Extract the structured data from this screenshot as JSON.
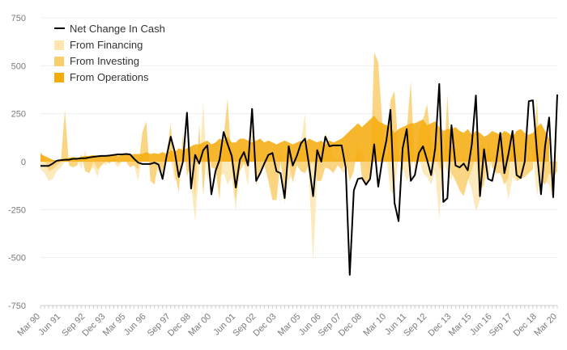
{
  "chart_data": {
    "type": "area",
    "x_ticks": [
      "Mar 90",
      "Jun 91",
      "Sep 92",
      "Dec 93",
      "Mar 95",
      "Jun 96",
      "Sep 97",
      "Dec 98",
      "Mar 00",
      "Jun 01",
      "Sep 02",
      "Dec 03",
      "Mar 05",
      "Jun 06",
      "Sep 07",
      "Dec 08",
      "Mar 10",
      "Jun 11",
      "Sep 12",
      "Dec 13",
      "Mar 15",
      "Jun 16",
      "Sep 17",
      "Dec 18",
      "Mar 20"
    ],
    "y_ticks": [
      750,
      500,
      250,
      0,
      -250,
      -500,
      -750
    ],
    "ylim": [
      -750,
      750
    ],
    "x_start": "Mar 90",
    "x_end": "Jun 20",
    "frequency": "quarterly",
    "legend": {
      "net_change": "Net Change In Cash",
      "financing": "From Financing",
      "investing": "From Investing",
      "operations": "From Operations"
    },
    "colors": {
      "net_change": "#000000",
      "financing": "#fde6b0",
      "investing": "#f9cf6e",
      "operations": "#f4aa0a"
    },
    "series": [
      {
        "name": "Net Change In Cash",
        "values": [
          -22,
          -22,
          -22,
          -10,
          5,
          8,
          10,
          10,
          15,
          15,
          18,
          18,
          22,
          25,
          28,
          30,
          30,
          32,
          35,
          38,
          38,
          40,
          38,
          15,
          -5,
          -12,
          -12,
          -12,
          -5,
          -15,
          -90,
          30,
          130,
          50,
          -80,
          0,
          255,
          -140,
          35,
          -10,
          60,
          85,
          -170,
          -50,
          10,
          155,
          90,
          30,
          -135,
          10,
          50,
          -20,
          275,
          -100,
          -60,
          -10,
          35,
          45,
          -50,
          -60,
          -190,
          80,
          -20,
          30,
          95,
          120,
          -20,
          -180,
          60,
          0,
          130,
          80,
          85,
          85,
          85,
          -30,
          -590,
          -150,
          -90,
          -85,
          -120,
          -90,
          90,
          -130,
          10,
          110,
          270,
          -215,
          -310,
          70,
          170,
          -100,
          -70,
          45,
          80,
          10,
          -70,
          70,
          405,
          -210,
          -190,
          190,
          -20,
          -30,
          -10,
          -45,
          90,
          345,
          -180,
          65,
          -90,
          -100,
          0,
          150,
          -60,
          40,
          160,
          -70,
          -85,
          0,
          315,
          320,
          50,
          -170,
          80,
          230,
          -185,
          350
        ]
      },
      {
        "name": "From Financing",
        "values": [
          -40,
          -60,
          -100,
          -90,
          -50,
          -30,
          0,
          10,
          -20,
          20,
          -40,
          60,
          -50,
          -30,
          -80,
          0,
          -20,
          20,
          0,
          -30,
          0,
          20,
          -20,
          -20,
          -100,
          30,
          60,
          -40,
          0,
          -60,
          -20,
          40,
          20,
          -100,
          -80,
          0,
          10,
          -120,
          -310,
          -50,
          320,
          -100,
          -20,
          -30,
          -80,
          -60,
          -120,
          -80,
          -260,
          80,
          -20,
          -130,
          200,
          -40,
          -60,
          -20,
          40,
          -160,
          -60,
          80,
          -220,
          -100,
          -60,
          30,
          100,
          250,
          -100,
          -520,
          -80,
          -20,
          150,
          100,
          20,
          10,
          -50,
          -60,
          10,
          -20,
          40,
          70,
          -40,
          -80,
          40,
          100,
          120,
          30,
          -150,
          -180,
          40,
          -30,
          -100,
          -60,
          60,
          20,
          -60,
          -80,
          -120,
          -50,
          -300,
          20,
          -60,
          -100,
          60,
          -60,
          40,
          -80,
          -150,
          -260,
          -200,
          -100,
          -80,
          20,
          -80,
          40,
          -60,
          -200,
          -80,
          -100,
          -80,
          -20,
          -60,
          40,
          -180,
          -80,
          -100,
          -120,
          -200,
          80
        ]
      },
      {
        "name": "From Investing",
        "values": [
          50,
          20,
          -50,
          -40,
          -20,
          0,
          270,
          -20,
          -30,
          -20,
          40,
          -50,
          -60,
          0,
          -40,
          -20,
          0,
          -10,
          20,
          -10,
          0,
          0,
          -30,
          -20,
          -40,
          150,
          210,
          -100,
          -120,
          0,
          -60,
          40,
          200,
          -60,
          -160,
          150,
          -80,
          0,
          -180,
          200,
          -180,
          100,
          -30,
          -40,
          -200,
          130,
          330,
          -30,
          -200,
          -50,
          -10,
          -30,
          100,
          -120,
          -50,
          -20,
          -100,
          -200,
          -200,
          0,
          -150,
          0,
          -110,
          -20,
          -50,
          -60,
          -20,
          0,
          -100,
          -100,
          -30,
          -40,
          -60,
          -20,
          -40,
          0,
          -100,
          -50,
          100,
          -80,
          -120,
          -100,
          570,
          520,
          200,
          -10,
          320,
          370,
          50,
          -50,
          160,
          420,
          -50,
          150,
          220,
          300,
          110,
          30,
          -30,
          -70,
          350,
          -60,
          -100,
          -150,
          -180,
          -100,
          -40,
          20,
          -150,
          -120,
          100,
          -30,
          -60,
          -60,
          -120,
          -80,
          150,
          -100,
          -90,
          -80,
          -60,
          -40,
          330,
          -100,
          -120,
          -60,
          -80,
          -50
        ]
      },
      {
        "name": "From Operations",
        "values": [
          40,
          30,
          20,
          10,
          5,
          10,
          15,
          20,
          25,
          20,
          25,
          30,
          30,
          35,
          30,
          35,
          30,
          35,
          40,
          30,
          35,
          40,
          35,
          40,
          40,
          40,
          50,
          40,
          45,
          40,
          50,
          40,
          60,
          50,
          70,
          60,
          70,
          80,
          90,
          90,
          100,
          110,
          90,
          100,
          120,
          110,
          130,
          100,
          100,
          120,
          120,
          110,
          100,
          110,
          120,
          100,
          110,
          100,
          90,
          100,
          110,
          100,
          90,
          100,
          110,
          100,
          120,
          110,
          100,
          110,
          90,
          110,
          100,
          110,
          120,
          140,
          160,
          180,
          200,
          180,
          200,
          220,
          240,
          210,
          200,
          190,
          180,
          150,
          170,
          180,
          190,
          200,
          200,
          210,
          220,
          190,
          200,
          210,
          180,
          160,
          170,
          170,
          180,
          160,
          150,
          170,
          140,
          160,
          150,
          130,
          140,
          160,
          150,
          140,
          160,
          150,
          130,
          160,
          170,
          150,
          140,
          150,
          180,
          200,
          160,
          120
        ]
      }
    ]
  }
}
